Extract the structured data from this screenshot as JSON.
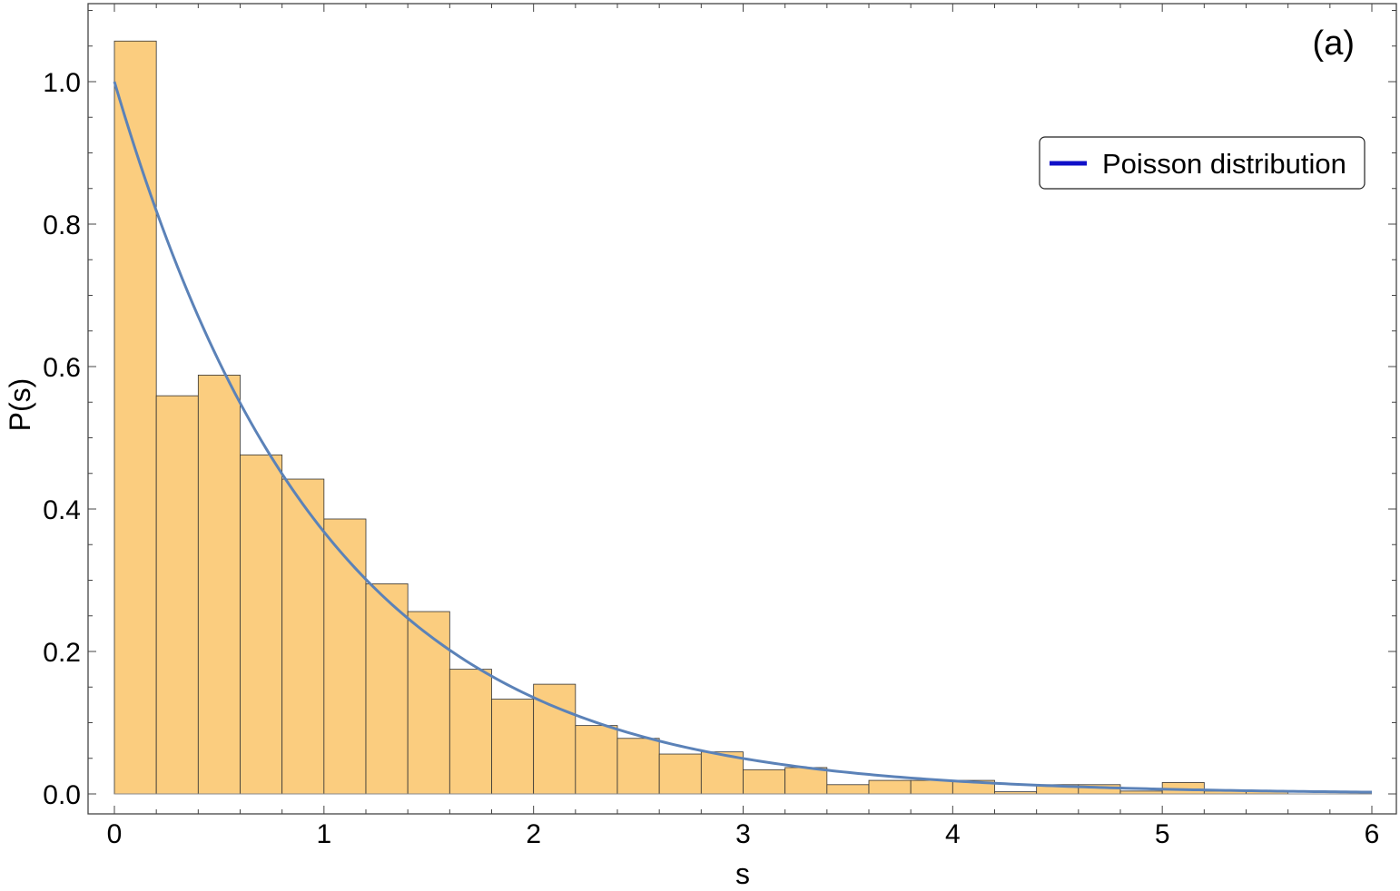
{
  "chart_data": {
    "type": "bar",
    "panel_label": "(a)",
    "xlabel": "s",
    "ylabel": "P(s)",
    "xlim": [
      0,
      6
    ],
    "ylim": [
      0,
      1.1
    ],
    "x_ticks": [
      0,
      1,
      2,
      3,
      4,
      5,
      6
    ],
    "y_ticks": [
      "0.0",
      "0.2",
      "0.4",
      "0.6",
      "0.8",
      "1.0"
    ],
    "bin_width": 0.2,
    "bins": [
      {
        "x0": 0.0,
        "value": 1.057
      },
      {
        "x0": 0.2,
        "value": 0.559
      },
      {
        "x0": 0.4,
        "value": 0.588
      },
      {
        "x0": 0.6,
        "value": 0.476
      },
      {
        "x0": 0.8,
        "value": 0.442
      },
      {
        "x0": 1.0,
        "value": 0.386
      },
      {
        "x0": 1.2,
        "value": 0.295
      },
      {
        "x0": 1.4,
        "value": 0.256
      },
      {
        "x0": 1.6,
        "value": 0.175
      },
      {
        "x0": 1.8,
        "value": 0.133
      },
      {
        "x0": 2.0,
        "value": 0.154
      },
      {
        "x0": 2.2,
        "value": 0.096
      },
      {
        "x0": 2.4,
        "value": 0.078
      },
      {
        "x0": 2.6,
        "value": 0.056
      },
      {
        "x0": 2.8,
        "value": 0.059
      },
      {
        "x0": 3.0,
        "value": 0.034
      },
      {
        "x0": 3.2,
        "value": 0.037
      },
      {
        "x0": 3.4,
        "value": 0.013
      },
      {
        "x0": 3.6,
        "value": 0.019
      },
      {
        "x0": 3.8,
        "value": 0.019
      },
      {
        "x0": 4.0,
        "value": 0.019
      },
      {
        "x0": 4.2,
        "value": 0.003
      },
      {
        "x0": 4.4,
        "value": 0.013
      },
      {
        "x0": 4.6,
        "value": 0.013
      },
      {
        "x0": 4.8,
        "value": 0.004
      },
      {
        "x0": 5.0,
        "value": 0.016
      },
      {
        "x0": 5.2,
        "value": 0.004
      },
      {
        "x0": 5.4,
        "value": 0.004
      }
    ],
    "series": [
      {
        "name": "Poisson distribution",
        "function": "exp(-s)",
        "x_range": [
          0,
          6
        ]
      }
    ],
    "legend": {
      "position": "top-right",
      "swatch_color": "#1010c8"
    },
    "grid": false,
    "colors": {
      "bar_fill": "#fbcd7f",
      "bar_stroke": "#333333",
      "curve": "#5b82b8"
    }
  }
}
